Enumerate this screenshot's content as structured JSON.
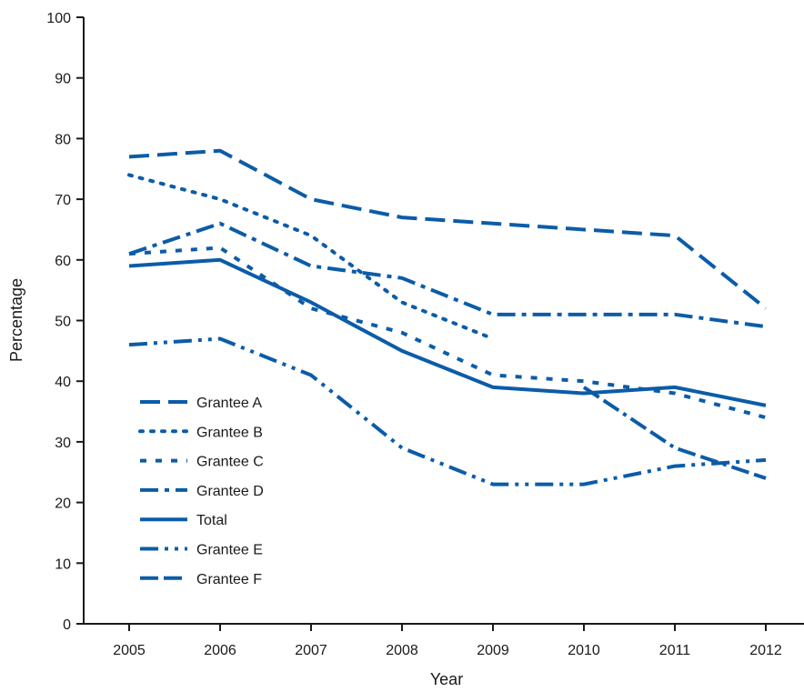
{
  "chart_data": {
    "type": "line",
    "title": "",
    "xlabel": "Year",
    "ylabel": "Percentage",
    "x": [
      2005,
      2006,
      2007,
      2008,
      2009,
      2010,
      2011,
      2012
    ],
    "ylim": [
      0,
      100
    ],
    "yticks": [
      0,
      10,
      20,
      30,
      40,
      50,
      60,
      70,
      80,
      90,
      100
    ],
    "grid": false,
    "legend_position": "lower-left",
    "line_color": "#0b5ca8",
    "series": [
      {
        "name": "Grantee A",
        "dash": "long-dash",
        "values": [
          77,
          78,
          70,
          67,
          66,
          65,
          64,
          52
        ]
      },
      {
        "name": "Grantee B",
        "dash": "dotted",
        "values": [
          74,
          70,
          64,
          53,
          47,
          null,
          null,
          null
        ]
      },
      {
        "name": "Grantee C",
        "dash": "short-dash",
        "values": [
          61,
          62,
          52,
          48,
          41,
          40,
          38,
          34
        ]
      },
      {
        "name": "Grantee D",
        "dash": "dash-dot",
        "values": [
          61,
          66,
          59,
          57,
          51,
          51,
          51,
          49
        ]
      },
      {
        "name": "Total",
        "dash": "solid",
        "values": [
          59,
          60,
          53,
          45,
          39,
          38,
          39,
          36
        ]
      },
      {
        "name": "Grantee E",
        "dash": "dash-dot-dot",
        "values": [
          46,
          47,
          41,
          29,
          23,
          23,
          26,
          27
        ]
      },
      {
        "name": "Grantee F",
        "dash": "dash-dash-dot",
        "values": [
          null,
          null,
          null,
          null,
          null,
          39,
          29,
          24
        ]
      }
    ]
  }
}
